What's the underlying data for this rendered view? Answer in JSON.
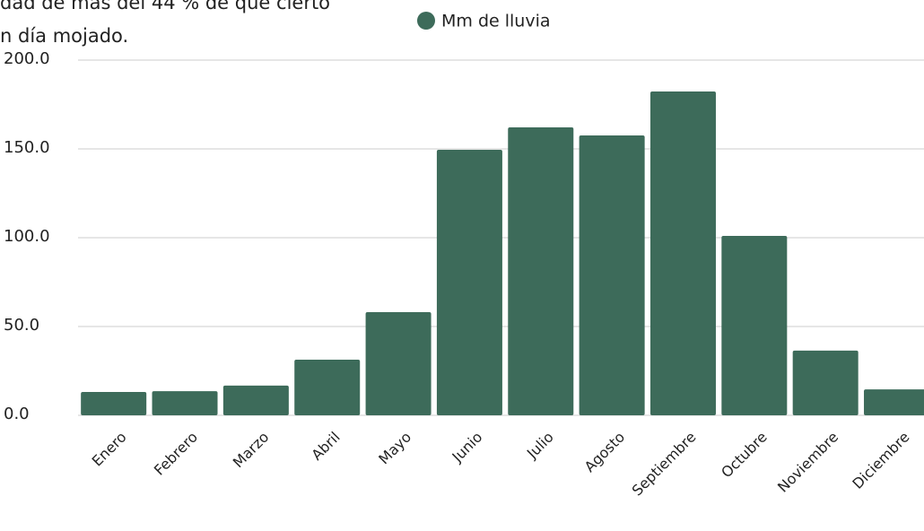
{
  "chart_data": {
    "type": "bar",
    "title_lines": [
      "dad de más del 44 % de que cierto",
      "n día mojado."
    ],
    "categories": [
      "Enero",
      "Febrero",
      "Marzo",
      "Abril",
      "Mayo",
      "Junio",
      "Julio",
      "Agosto",
      "Septiembre",
      "Octubre",
      "Noviembre",
      "Diciembre"
    ],
    "series": [
      {
        "name": "Mm de lluvia",
        "color": "#3d6b5a",
        "values": [
          13.1,
          13.6,
          16.7,
          31.3,
          58.1,
          149.5,
          162.1,
          157.6,
          182.3,
          101.0,
          36.4,
          14.6
        ]
      }
    ],
    "ylim": [
      0,
      200
    ],
    "yticks": [
      {
        "value": 0,
        "label": "0.0"
      },
      {
        "value": 50,
        "label": "50.0"
      },
      {
        "value": 100,
        "label": "100.0"
      },
      {
        "value": 150,
        "label": "150.0"
      },
      {
        "value": 200,
        "label": "200.0"
      }
    ],
    "grid": true,
    "legend": "top"
  }
}
